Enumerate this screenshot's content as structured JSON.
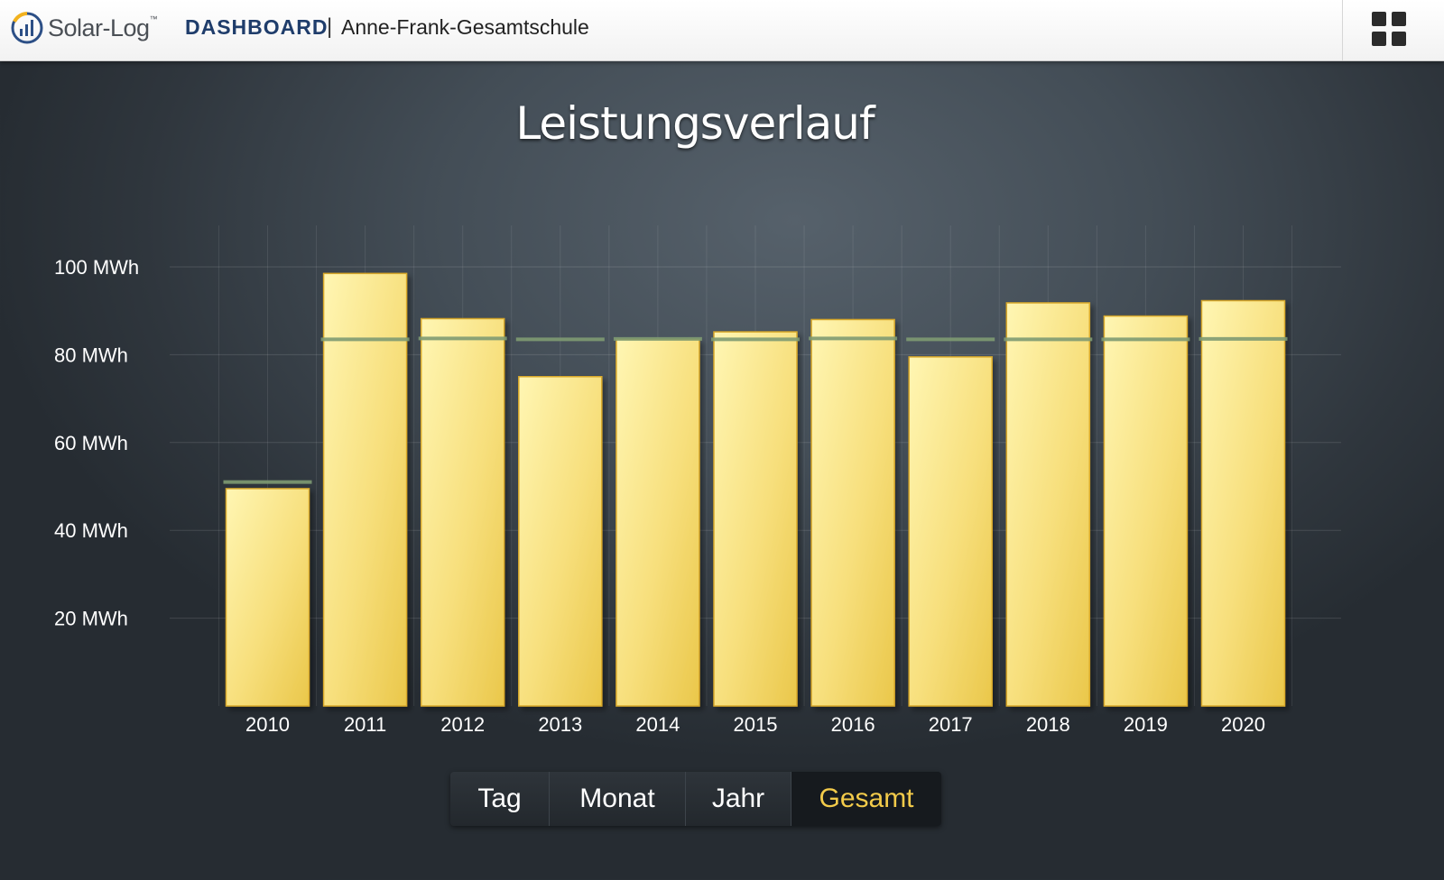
{
  "header": {
    "logo_text": "Solar-Log",
    "logo_tm": "™",
    "app_name": "DASHBOARD",
    "separator": "|",
    "plant_name": "Anne-Frank-Gesamtschule",
    "menu_icon": "grid-menu-icon"
  },
  "colors": {
    "bar_fill": "#f5d76a",
    "target_line": "#7e9a72",
    "active_tab": "#f3cb4a"
  },
  "chart_data": {
    "type": "bar",
    "title": "Leistungsverlauf",
    "categories": [
      "2010",
      "2011",
      "2012",
      "2013",
      "2014",
      "2015",
      "2016",
      "2017",
      "2018",
      "2019",
      "2020"
    ],
    "series": [
      {
        "values": [
          49.5,
          98.5,
          88.2,
          75.0,
          83.5,
          85.2,
          88.0,
          79.5,
          91.8,
          88.8,
          92.3
        ]
      }
    ],
    "target_values": [
      51.0,
      83.5,
      83.7,
      83.5,
      83.6,
      83.5,
      83.7,
      83.5,
      83.5,
      83.5,
      83.6
    ],
    "ylim": [
      0,
      100
    ],
    "yticks": [
      {
        "value": 20,
        "label": "20 MWh"
      },
      {
        "value": 40,
        "label": "40 MWh"
      },
      {
        "value": 60,
        "label": "60 MWh"
      },
      {
        "value": 80,
        "label": "80 MWh"
      },
      {
        "value": 100,
        "label": "100 MWh"
      }
    ],
    "grid": true,
    "legend": "none"
  },
  "period_tabs": [
    {
      "label": "Tag",
      "active": false
    },
    {
      "label": "Monat",
      "active": false
    },
    {
      "label": "Jahr",
      "active": false
    },
    {
      "label": "Gesamt",
      "active": true
    }
  ]
}
